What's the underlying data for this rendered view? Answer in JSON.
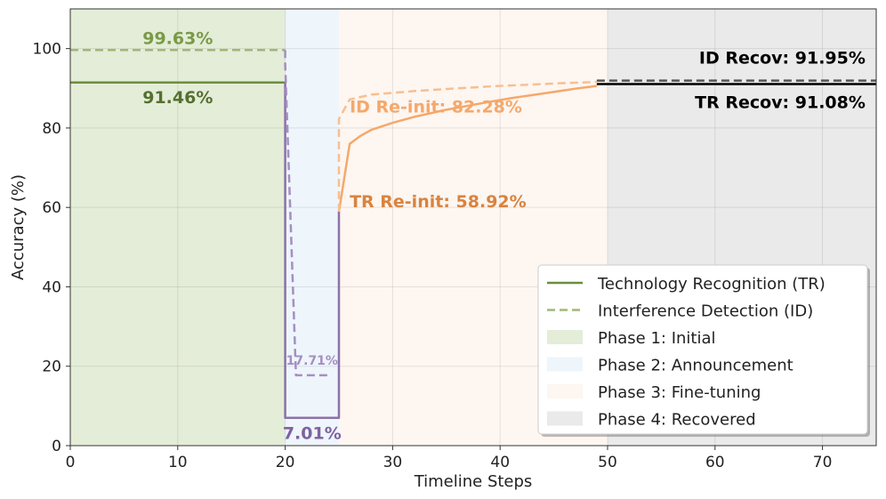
{
  "chart_data": {
    "type": "line",
    "xlabel": "Timeline Steps",
    "ylabel": "Accuracy (%)",
    "xlim": [
      0,
      75
    ],
    "ylim": [
      0,
      110
    ],
    "xticks": [
      0,
      10,
      20,
      30,
      40,
      50,
      60,
      70
    ],
    "yticks": [
      0,
      20,
      40,
      60,
      80,
      100
    ],
    "grid": true,
    "legend_position": "bottom-right",
    "phases": [
      {
        "name": "Phase 1: Initial",
        "x": [
          0,
          20
        ],
        "color": "#e4edd8"
      },
      {
        "name": "Phase 2: Announcement",
        "x": [
          20,
          25
        ],
        "color": "#eef5fb"
      },
      {
        "name": "Phase 3: Fine-tuning",
        "x": [
          25,
          50
        ],
        "color": "#fdf6f1"
      },
      {
        "name": "Phase 4: Recovered",
        "x": [
          50,
          75
        ],
        "color": "#eaeaea"
      }
    ],
    "series": [
      {
        "name": "Technology Recognition (TR)",
        "style": "solid",
        "segments": [
          {
            "color": "#6b8e3d",
            "points": [
              [
                0,
                91.46
              ],
              [
                20,
                91.46
              ]
            ]
          },
          {
            "color": "#8b72a8",
            "points": [
              [
                20,
                91.46
              ],
              [
                20,
                7.01
              ],
              [
                25,
                7.01
              ],
              [
                25,
                58.92
              ]
            ]
          },
          {
            "color": "#f5a86a",
            "points": [
              [
                25,
                58.92
              ],
              [
                26,
                76
              ],
              [
                27,
                78
              ],
              [
                28,
                79.5
              ],
              [
                30,
                81.3
              ],
              [
                32,
                82.8
              ],
              [
                35,
                84.6
              ],
              [
                38,
                86.1
              ],
              [
                41,
                87.5
              ],
              [
                44,
                88.7
              ],
              [
                47,
                89.9
              ],
              [
                49,
                90.6
              ]
            ]
          },
          {
            "color": "#000000",
            "points": [
              [
                49,
                91.08
              ],
              [
                75,
                91.08
              ]
            ]
          }
        ]
      },
      {
        "name": "Interference Detection (ID)",
        "style": "dashed",
        "segments": [
          {
            "color": "#9fb876",
            "points": [
              [
                0,
                99.63
              ],
              [
                20,
                99.63
              ]
            ]
          },
          {
            "color": "#a58fc1",
            "points": [
              [
                20,
                99.63
              ],
              [
                20,
                96
              ],
              [
                21,
                17.71
              ],
              [
                24,
                17.71
              ]
            ]
          },
          {
            "color": "#f7bf91",
            "points": [
              [
                25,
                58.92
              ],
              [
                25,
                82.28
              ],
              [
                26,
                87.2
              ],
              [
                28,
                88.4
              ],
              [
                32,
                89.3
              ],
              [
                36,
                90
              ],
              [
                40,
                90.6
              ],
              [
                45,
                91.2
              ],
              [
                49,
                91.6
              ]
            ]
          },
          {
            "color": "#555555",
            "points": [
              [
                49,
                91.95
              ],
              [
                75,
                91.95
              ]
            ]
          }
        ]
      }
    ],
    "annotations": [
      {
        "text": "99.63%",
        "x": 10,
        "y": 99.63,
        "color": "#7a9a47"
      },
      {
        "text": "91.46%",
        "x": 10,
        "y": 91.46,
        "color": "#55702f"
      },
      {
        "text": "ID Re-init: 82.28%",
        "x": 26,
        "y": 82.28,
        "color": "#f5a86a"
      },
      {
        "text": "TR Re-init: 58.92%",
        "x": 26,
        "y": 58.92,
        "color": "#d9833e"
      },
      {
        "text": "17.71%",
        "x": 22.5,
        "y": 17.71,
        "color": "#a58fc1"
      },
      {
        "text": "7.01%",
        "x": 22.5,
        "y": 7.01,
        "color": "#7e62a0"
      },
      {
        "text": "ID Recov: 91.95%",
        "x": 74,
        "y": 91.95,
        "color": "#000000"
      },
      {
        "text": "TR Recov: 91.08%",
        "x": 74,
        "y": 91.08,
        "color": "#000000"
      }
    ],
    "legend": [
      {
        "label": "Technology Recognition (TR)",
        "kind": "line",
        "color": "#6b8e3d"
      },
      {
        "label": "Interference Detection (ID)",
        "kind": "dashed",
        "color": "#9fb876"
      },
      {
        "label": "Phase 1: Initial",
        "kind": "patch",
        "color": "#e4edd8"
      },
      {
        "label": "Phase 2: Announcement",
        "kind": "patch",
        "color": "#eef5fb"
      },
      {
        "label": "Phase 3: Fine-tuning",
        "kind": "patch",
        "color": "#fdf6f1"
      },
      {
        "label": "Phase 4: Recovered",
        "kind": "patch",
        "color": "#eaeaea"
      }
    ]
  }
}
